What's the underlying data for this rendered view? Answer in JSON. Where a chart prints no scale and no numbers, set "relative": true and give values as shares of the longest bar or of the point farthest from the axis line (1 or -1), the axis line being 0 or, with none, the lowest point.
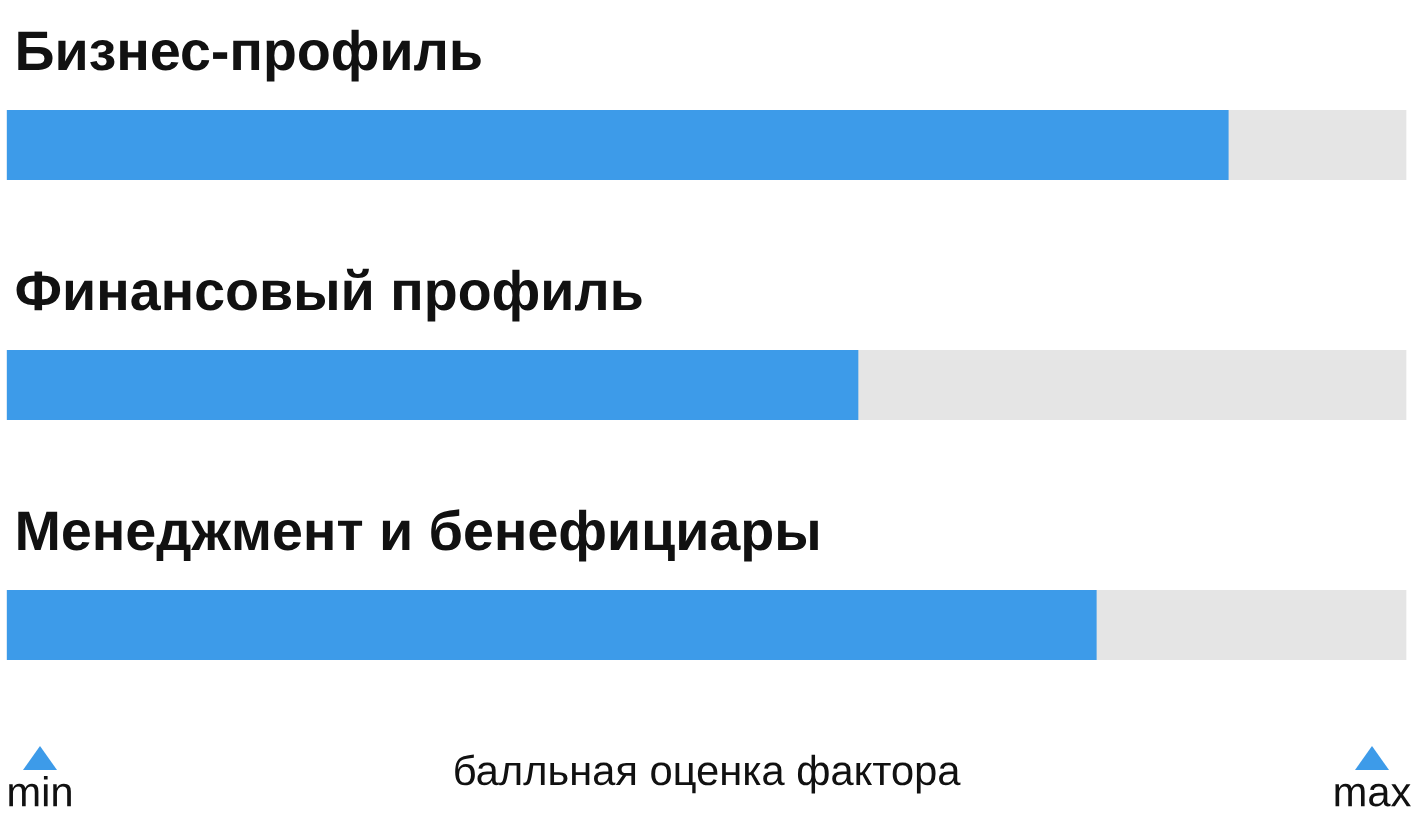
{
  "chart_data": {
    "type": "bar",
    "orientation": "horizontal",
    "relative": true,
    "categories": [
      "Бизнес-профиль",
      "Финансовый профиль",
      "Менеджмент и бенефициары"
    ],
    "values": [
      1,
      0.697,
      0.892
    ],
    "color": "#3d9be9",
    "xlabel": "балльная оценка фактора",
    "annotations": [
      "min",
      "max"
    ]
  }
}
